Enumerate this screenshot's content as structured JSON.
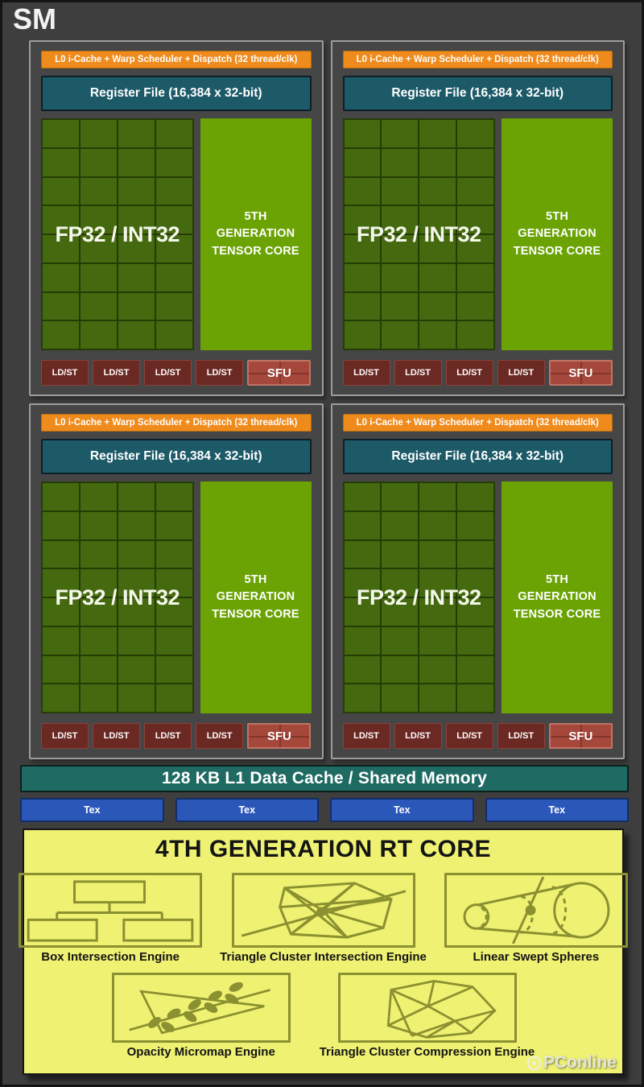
{
  "title": "SM",
  "partitions_count": 4,
  "partition": {
    "scheduler_label": "L0 i-Cache + Warp Scheduler + Dispatch (32 thread/clk)",
    "register_label": "Register File (16,384 x 32-bit)",
    "core_label": "FP32 / INT32",
    "core_grid": {
      "rows": 8,
      "cols": 4
    },
    "tensor_lines": [
      "5TH",
      "GENERATION",
      "TENSOR CORE"
    ],
    "ldst_label": "LD/ST",
    "ldst_count": 4,
    "sfu_label": "SFU"
  },
  "l1_label": "128 KB L1 Data Cache / Shared Memory",
  "tex_label": "Tex",
  "tex_count": 4,
  "rt_core": {
    "title": "4TH GENERATION RT CORE",
    "engines": [
      {
        "label": "Box Intersection Engine",
        "icon": "box-hierarchy-icon"
      },
      {
        "label": "Triangle Cluster Intersection Engine",
        "icon": "triangle-mesh-ray-icon"
      },
      {
        "label": "Linear Swept Spheres",
        "icon": "swept-spheres-icon"
      },
      {
        "label": "Opacity Micromap Engine",
        "icon": "leaf-triangle-icon"
      },
      {
        "label": "Triangle Cluster Compression Engine",
        "icon": "gem-mesh-icon"
      }
    ]
  },
  "watermark": "PConline",
  "colors": {
    "background": "#3e3e3e",
    "partition_border": "#9d9d9d",
    "scheduler_orange": "#ef8b1d",
    "register_teal": "#1d5a68",
    "core_green": "#45690f",
    "core_grid_line": "#243d06",
    "tensor_green": "#6aa303",
    "ldst_red": "#6b2923",
    "sfu_red": "#a5473a",
    "l1_teal": "#1f6a62",
    "tex_blue": "#2b57b9",
    "rt_yellow": "#eef172",
    "icon_olive": "#8b9030"
  }
}
